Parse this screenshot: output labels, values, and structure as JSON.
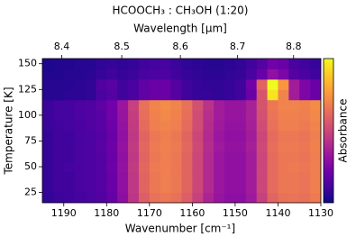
{
  "chart_data": {
    "type": "heatmap",
    "title": "HCOOCH₃ : CH₃OH (1:20)",
    "xlabel": "Wavenumber [cm⁻¹]",
    "x2label": "Wavelength [μm]",
    "ylabel": "Temperature [K]",
    "colorbar_label": "Absorbance",
    "colormap": "plasma",
    "zlim": [
      0,
      1
    ],
    "xlim": [
      1195,
      1130
    ],
    "xticks": [
      1190,
      1180,
      1170,
      1160,
      1150,
      1140,
      1130
    ],
    "x2ticks": [
      8.4,
      8.5,
      8.6,
      8.7,
      8.8
    ],
    "ylim": [
      15,
      155
    ],
    "yticks": [
      25,
      50,
      75,
      100,
      125,
      150
    ],
    "x": [
      1193.75,
      1191.25,
      1188.75,
      1186.25,
      1183.75,
      1181.25,
      1178.75,
      1176.25,
      1173.75,
      1171.25,
      1168.75,
      1166.25,
      1163.75,
      1161.25,
      1158.75,
      1156.25,
      1153.75,
      1151.25,
      1148.75,
      1146.25,
      1143.75,
      1141.25,
      1138.75,
      1136.25,
      1133.75,
      1131.25
    ],
    "y": [
      20,
      30,
      40,
      50,
      60,
      70,
      80,
      90,
      100,
      110,
      120,
      130,
      140,
      150
    ],
    "z": [
      [
        0.07,
        0.09,
        0.1,
        0.11,
        0.12,
        0.14,
        0.19,
        0.29,
        0.44,
        0.58,
        0.64,
        0.66,
        0.64,
        0.58,
        0.48,
        0.38,
        0.32,
        0.29,
        0.29,
        0.34,
        0.48,
        0.6,
        0.64,
        0.65,
        0.64,
        0.67
      ],
      [
        0.08,
        0.1,
        0.1,
        0.12,
        0.13,
        0.15,
        0.2,
        0.3,
        0.45,
        0.6,
        0.66,
        0.68,
        0.66,
        0.6,
        0.5,
        0.4,
        0.33,
        0.3,
        0.3,
        0.35,
        0.5,
        0.62,
        0.66,
        0.66,
        0.65,
        0.68
      ],
      [
        0.08,
        0.1,
        0.1,
        0.12,
        0.13,
        0.15,
        0.2,
        0.3,
        0.45,
        0.6,
        0.66,
        0.68,
        0.66,
        0.6,
        0.5,
        0.4,
        0.33,
        0.3,
        0.3,
        0.35,
        0.5,
        0.62,
        0.66,
        0.66,
        0.65,
        0.68
      ],
      [
        0.08,
        0.1,
        0.11,
        0.12,
        0.13,
        0.15,
        0.21,
        0.31,
        0.46,
        0.61,
        0.67,
        0.68,
        0.66,
        0.6,
        0.5,
        0.4,
        0.33,
        0.3,
        0.3,
        0.35,
        0.5,
        0.62,
        0.66,
        0.67,
        0.66,
        0.68
      ],
      [
        0.08,
        0.1,
        0.1,
        0.12,
        0.13,
        0.15,
        0.2,
        0.3,
        0.45,
        0.6,
        0.66,
        0.68,
        0.66,
        0.6,
        0.5,
        0.4,
        0.33,
        0.3,
        0.3,
        0.35,
        0.5,
        0.62,
        0.66,
        0.66,
        0.65,
        0.68
      ],
      [
        0.08,
        0.1,
        0.1,
        0.12,
        0.13,
        0.16,
        0.21,
        0.31,
        0.46,
        0.61,
        0.67,
        0.69,
        0.67,
        0.61,
        0.51,
        0.41,
        0.34,
        0.31,
        0.31,
        0.36,
        0.51,
        0.63,
        0.67,
        0.67,
        0.66,
        0.69
      ],
      [
        0.08,
        0.1,
        0.1,
        0.12,
        0.13,
        0.15,
        0.2,
        0.3,
        0.45,
        0.6,
        0.66,
        0.68,
        0.66,
        0.6,
        0.5,
        0.4,
        0.33,
        0.3,
        0.3,
        0.35,
        0.5,
        0.62,
        0.66,
        0.66,
        0.65,
        0.68
      ],
      [
        0.09,
        0.1,
        0.11,
        0.12,
        0.14,
        0.16,
        0.21,
        0.31,
        0.46,
        0.62,
        0.68,
        0.7,
        0.68,
        0.62,
        0.52,
        0.41,
        0.34,
        0.31,
        0.31,
        0.36,
        0.52,
        0.64,
        0.68,
        0.68,
        0.67,
        0.7
      ],
      [
        0.09,
        0.11,
        0.11,
        0.13,
        0.14,
        0.16,
        0.22,
        0.32,
        0.47,
        0.63,
        0.69,
        0.71,
        0.69,
        0.63,
        0.52,
        0.42,
        0.35,
        0.32,
        0.32,
        0.37,
        0.53,
        0.65,
        0.69,
        0.69,
        0.68,
        0.71
      ],
      [
        0.09,
        0.11,
        0.11,
        0.13,
        0.14,
        0.17,
        0.22,
        0.33,
        0.48,
        0.64,
        0.7,
        0.72,
        0.7,
        0.64,
        0.53,
        0.43,
        0.35,
        0.32,
        0.32,
        0.37,
        0.54,
        0.66,
        0.7,
        0.7,
        0.69,
        0.72
      ],
      [
        0.05,
        0.05,
        0.06,
        0.06,
        0.07,
        0.12,
        0.15,
        0.1,
        0.12,
        0.18,
        0.2,
        0.2,
        0.15,
        0.1,
        0.08,
        0.08,
        0.07,
        0.08,
        0.1,
        0.2,
        0.55,
        0.95,
        0.7,
        0.35,
        0.25,
        0.2
      ],
      [
        0.05,
        0.05,
        0.05,
        0.06,
        0.07,
        0.14,
        0.16,
        0.1,
        0.12,
        0.18,
        0.2,
        0.2,
        0.15,
        0.1,
        0.08,
        0.07,
        0.07,
        0.08,
        0.1,
        0.22,
        0.6,
        1.0,
        0.75,
        0.35,
        0.25,
        0.2
      ],
      [
        0.04,
        0.04,
        0.05,
        0.05,
        0.06,
        0.08,
        0.1,
        0.08,
        0.09,
        0.12,
        0.13,
        0.13,
        0.1,
        0.08,
        0.07,
        0.06,
        0.06,
        0.07,
        0.08,
        0.12,
        0.2,
        0.3,
        0.25,
        0.15,
        0.12,
        0.1
      ],
      [
        0.03,
        0.04,
        0.04,
        0.05,
        0.05,
        0.07,
        0.08,
        0.07,
        0.08,
        0.1,
        0.11,
        0.11,
        0.09,
        0.07,
        0.06,
        0.05,
        0.05,
        0.06,
        0.07,
        0.1,
        0.15,
        0.22,
        0.2,
        0.12,
        0.1,
        0.08
      ]
    ]
  }
}
